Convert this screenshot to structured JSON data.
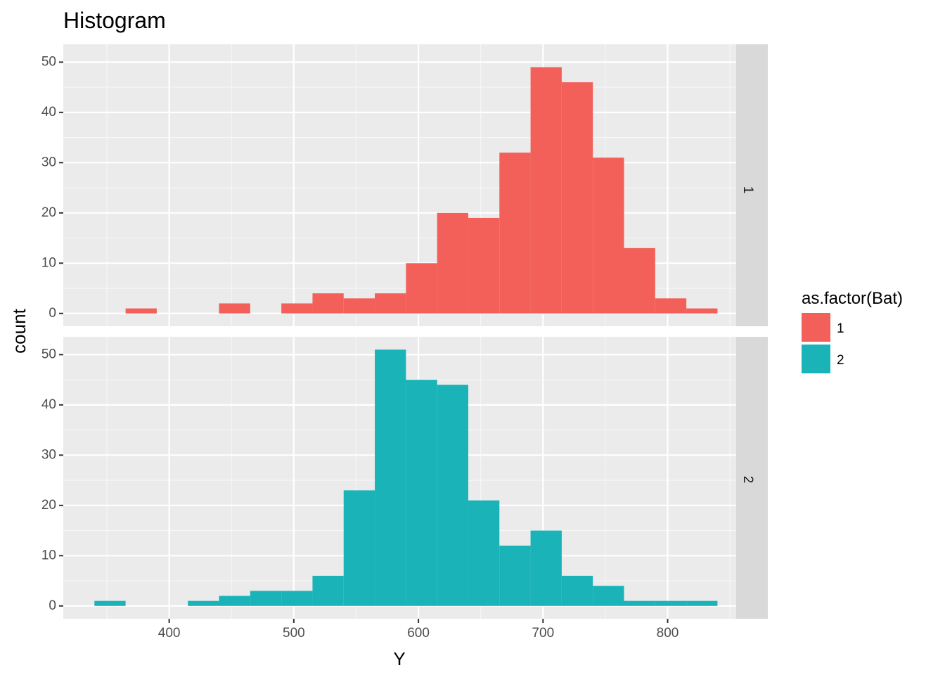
{
  "chart_data": {
    "type": "bar",
    "title": "Histogram",
    "xlabel": "Y",
    "ylabel": "count",
    "bin_width": 25,
    "xlim": [
      315,
      855
    ],
    "ylim": [
      -2.55,
      53.55
    ],
    "x_ticks": [
      400,
      500,
      600,
      700,
      800
    ],
    "y_ticks": [
      0,
      10,
      20,
      30,
      40,
      50
    ],
    "grid": true,
    "legend": {
      "title": "as.factor(Bat)",
      "position": "right",
      "entries": [
        {
          "label": "1",
          "color": "#F8766D"
        },
        {
          "label": "2",
          "color": "#00BFC4"
        }
      ]
    },
    "facets": [
      {
        "label": "1",
        "color": "#F3605A",
        "bins": [
          {
            "x": 377.5,
            "count": 1
          },
          {
            "x": 452.5,
            "count": 2
          },
          {
            "x": 502.5,
            "count": 2
          },
          {
            "x": 527.5,
            "count": 4
          },
          {
            "x": 552.5,
            "count": 3
          },
          {
            "x": 577.5,
            "count": 4
          },
          {
            "x": 602.5,
            "count": 10
          },
          {
            "x": 627.5,
            "count": 20
          },
          {
            "x": 652.5,
            "count": 19
          },
          {
            "x": 677.5,
            "count": 32
          },
          {
            "x": 702.5,
            "count": 49
          },
          {
            "x": 727.5,
            "count": 46
          },
          {
            "x": 752.5,
            "count": 31
          },
          {
            "x": 777.5,
            "count": 13
          },
          {
            "x": 802.5,
            "count": 3
          },
          {
            "x": 827.5,
            "count": 1
          }
        ]
      },
      {
        "label": "2",
        "color": "#1AB4B8",
        "bins": [
          {
            "x": 352.5,
            "count": 1
          },
          {
            "x": 427.5,
            "count": 1
          },
          {
            "x": 452.5,
            "count": 2
          },
          {
            "x": 477.5,
            "count": 3
          },
          {
            "x": 502.5,
            "count": 3
          },
          {
            "x": 527.5,
            "count": 6
          },
          {
            "x": 552.5,
            "count": 23
          },
          {
            "x": 577.5,
            "count": 51
          },
          {
            "x": 602.5,
            "count": 45
          },
          {
            "x": 627.5,
            "count": 44
          },
          {
            "x": 652.5,
            "count": 21
          },
          {
            "x": 677.5,
            "count": 12
          },
          {
            "x": 702.5,
            "count": 15
          },
          {
            "x": 727.5,
            "count": 6
          },
          {
            "x": 752.5,
            "count": 4
          },
          {
            "x": 777.5,
            "count": 1
          },
          {
            "x": 802.5,
            "count": 1
          },
          {
            "x": 827.5,
            "count": 1
          }
        ]
      }
    ]
  }
}
